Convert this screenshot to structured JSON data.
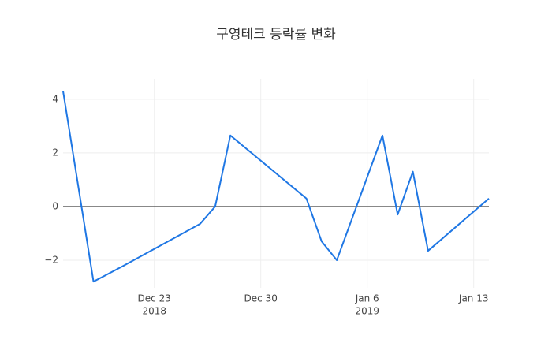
{
  "chart_data": {
    "type": "line",
    "title": "구영테크 등락률 변화",
    "x": [
      "2018-12-17",
      "2018-12-19",
      "2018-12-21",
      "2018-12-26",
      "2018-12-27",
      "2018-12-28",
      "2019-01-02",
      "2019-01-03",
      "2019-01-04",
      "2019-01-07",
      "2019-01-08",
      "2019-01-09",
      "2019-01-10",
      "2019-01-14"
    ],
    "series": [
      {
        "color": "#1f77e4",
        "values": [
          4.3,
          -2.8,
          -2.2,
          -0.65,
          0,
          2.65,
          0.3,
          -1.3,
          -2.0,
          2.65,
          -0.3,
          1.3,
          -1.65,
          0.3
        ]
      }
    ],
    "xlim": [
      "2018-12-17",
      "2019-01-14"
    ],
    "xticks": [
      {
        "value": "2018-12-23",
        "label": "Dec 23",
        "sublabel": "2018"
      },
      {
        "value": "2018-12-30",
        "label": "Dec 30"
      },
      {
        "value": "2019-01-06",
        "label": "Jan 6",
        "sublabel": "2019"
      },
      {
        "value": "2019-01-13",
        "label": "Jan 13"
      }
    ],
    "ylim": [
      -3.03,
      4.76
    ],
    "yticks": [
      {
        "value": -2,
        "label": "−2"
      },
      0,
      2,
      4
    ],
    "grid": true,
    "zeroline": true
  }
}
